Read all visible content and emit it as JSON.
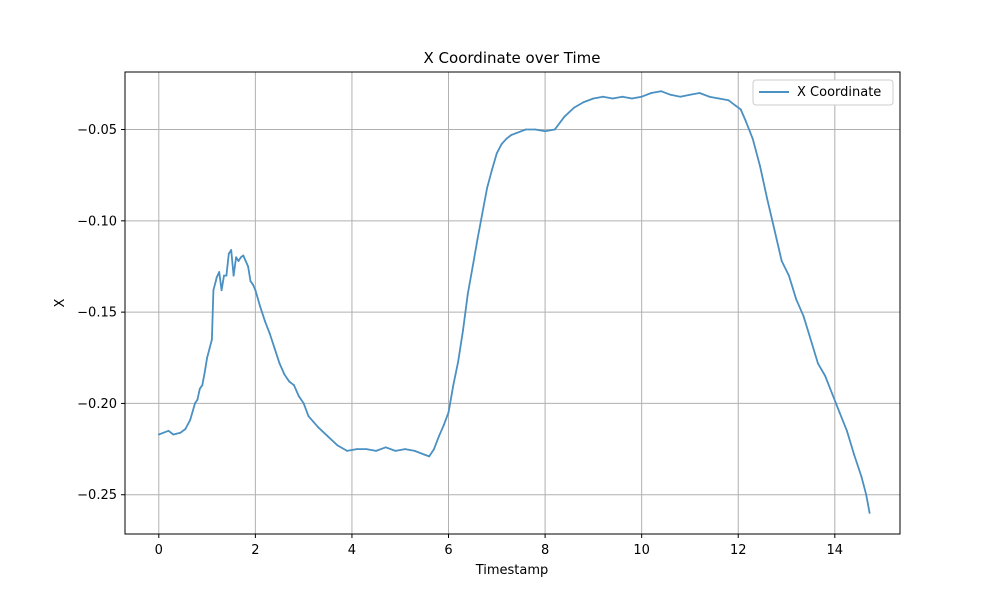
{
  "chart_data": {
    "type": "line",
    "title": "X Coordinate over Time",
    "xlabel": "Timestamp",
    "ylabel": "X",
    "xlim": [
      -0.7,
      15.35
    ],
    "ylim": [
      -0.2715,
      -0.0185
    ],
    "xticks": [
      0,
      2,
      4,
      6,
      8,
      10,
      12,
      14
    ],
    "xtick_labels": [
      "0",
      "2",
      "4",
      "6",
      "8",
      "10",
      "12",
      "14"
    ],
    "yticks": [
      -0.25,
      -0.2,
      -0.15,
      -0.1,
      -0.05
    ],
    "ytick_labels": [
      "−0.25",
      "−0.20",
      "−0.15",
      "−0.10",
      "−0.05"
    ],
    "grid": true,
    "legend_position": "upper right",
    "series": [
      {
        "name": "X Coordinate",
        "color": "#4a90c2",
        "x": [
          0.0,
          0.1,
          0.2,
          0.3,
          0.45,
          0.55,
          0.65,
          0.75,
          0.8,
          0.85,
          0.9,
          0.95,
          1.0,
          1.05,
          1.1,
          1.13,
          1.18,
          1.2,
          1.25,
          1.3,
          1.35,
          1.4,
          1.45,
          1.5,
          1.55,
          1.6,
          1.65,
          1.7,
          1.75,
          1.8,
          1.85,
          1.9,
          1.95,
          2.0,
          2.1,
          2.2,
          2.3,
          2.4,
          2.5,
          2.6,
          2.7,
          2.8,
          2.9,
          3.0,
          3.1,
          3.2,
          3.3,
          3.5,
          3.7,
          3.9,
          4.1,
          4.3,
          4.5,
          4.7,
          4.9,
          5.1,
          5.3,
          5.5,
          5.6,
          5.7,
          5.8,
          5.9,
          6.0,
          6.1,
          6.2,
          6.3,
          6.4,
          6.5,
          6.6,
          6.7,
          6.8,
          6.9,
          7.0,
          7.1,
          7.2,
          7.3,
          7.4,
          7.5,
          7.6,
          7.8,
          8.0,
          8.2,
          8.4,
          8.6,
          8.8,
          9.0,
          9.2,
          9.4,
          9.6,
          9.8,
          10.0,
          10.2,
          10.4,
          10.6,
          10.8,
          11.0,
          11.2,
          11.4,
          11.6,
          11.8,
          11.95,
          12.05,
          12.15,
          12.3,
          12.45,
          12.6,
          12.75,
          12.9,
          13.05,
          13.2,
          13.35,
          13.5,
          13.65,
          13.8,
          13.95,
          14.1,
          14.25,
          14.4,
          14.55,
          14.65,
          14.72
        ],
        "y": [
          -0.217,
          -0.216,
          -0.215,
          -0.217,
          -0.216,
          -0.214,
          -0.209,
          -0.2,
          -0.198,
          -0.192,
          -0.19,
          -0.183,
          -0.175,
          -0.17,
          -0.165,
          -0.138,
          -0.133,
          -0.131,
          -0.128,
          -0.138,
          -0.13,
          -0.13,
          -0.118,
          -0.116,
          -0.13,
          -0.12,
          -0.122,
          -0.12,
          -0.119,
          -0.122,
          -0.125,
          -0.133,
          -0.135,
          -0.138,
          -0.147,
          -0.155,
          -0.162,
          -0.17,
          -0.178,
          -0.184,
          -0.188,
          -0.19,
          -0.196,
          -0.2,
          -0.207,
          -0.21,
          -0.213,
          -0.218,
          -0.223,
          -0.226,
          -0.225,
          -0.225,
          -0.226,
          -0.224,
          -0.226,
          -0.225,
          -0.226,
          -0.228,
          -0.229,
          -0.225,
          -0.218,
          -0.212,
          -0.205,
          -0.19,
          -0.177,
          -0.16,
          -0.14,
          -0.125,
          -0.11,
          -0.096,
          -0.082,
          -0.072,
          -0.063,
          -0.058,
          -0.055,
          -0.053,
          -0.052,
          -0.051,
          -0.05,
          -0.05,
          -0.051,
          -0.05,
          -0.043,
          -0.038,
          -0.035,
          -0.033,
          -0.032,
          -0.033,
          -0.032,
          -0.033,
          -0.032,
          -0.03,
          -0.029,
          -0.031,
          -0.032,
          -0.031,
          -0.03,
          -0.032,
          -0.033,
          -0.034,
          -0.037,
          -0.039,
          -0.045,
          -0.055,
          -0.07,
          -0.088,
          -0.105,
          -0.122,
          -0.13,
          -0.143,
          -0.152,
          -0.165,
          -0.178,
          -0.185,
          -0.195,
          -0.205,
          -0.215,
          -0.228,
          -0.24,
          -0.25,
          -0.26
        ]
      }
    ]
  }
}
